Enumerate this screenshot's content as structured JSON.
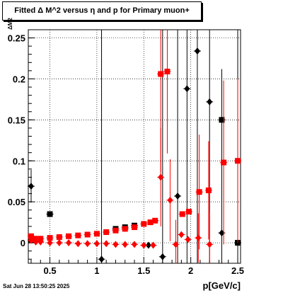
{
  "title": "Fitted Δ M^2 versus η and p for Primary muon+",
  "footer": "Sat Jun 28 13:50:25 2025",
  "chart_data": {
    "type": "scatter",
    "xlabel": "p[GeV/c]",
    "ylabel": "ΔM2",
    "xlim": [
      0.27,
      2.53
    ],
    "ylim": [
      -0.025,
      0.26
    ],
    "x_ticks": [
      {
        "value": 0.5,
        "label": "0.5"
      },
      {
        "value": 1.0,
        "label": "1"
      },
      {
        "value": 1.5,
        "label": "1.5"
      },
      {
        "value": 2.0,
        "label": "2"
      },
      {
        "value": 2.5,
        "label": "2.5"
      }
    ],
    "y_ticks": [
      {
        "value": 0,
        "label": "0"
      },
      {
        "value": 0.05,
        "label": "0.05"
      },
      {
        "value": 0.1,
        "label": "0.1"
      },
      {
        "value": 0.15,
        "label": "0.15"
      },
      {
        "value": 0.2,
        "label": "0.2"
      },
      {
        "value": 0.25,
        "label": "0.25"
      }
    ],
    "grid": true,
    "series": [
      {
        "color": "#000000",
        "marker": "square",
        "points": [
          {
            "x": 0.3,
            "y": 0.003
          },
          {
            "x": 0.5,
            "y": 0.035
          },
          {
            "x": 1.2,
            "y": 0.017
          },
          {
            "x": 1.3,
            "y": 0.019
          },
          {
            "x": 1.4,
            "y": 0.021
          },
          {
            "x": 2.33,
            "y": 0.15
          },
          {
            "x": 2.5,
            "y": 0.0
          }
        ]
      },
      {
        "color": "#000000",
        "marker": "diamond",
        "points": [
          {
            "x": 0.3,
            "y": 0.069,
            "err": 0.02
          },
          {
            "x": 1.05,
            "y": -0.02,
            "err": 0.3
          },
          {
            "x": 1.55,
            "y": -0.003
          },
          {
            "x": 1.7,
            "y": -0.017,
            "err": 0.3
          },
          {
            "x": 1.86,
            "y": 0.057,
            "err": 0.3
          },
          {
            "x": 1.96,
            "y": 0.188,
            "err": 0.3
          },
          {
            "x": 2.07,
            "y": 0.234,
            "err": 0.3
          },
          {
            "x": 2.2,
            "y": 0.172,
            "err": 0.3
          },
          {
            "x": 2.33,
            "y": 0.012,
            "err": 0.2
          },
          {
            "x": 2.5,
            "y": 0.0,
            "err": 0.3
          }
        ]
      },
      {
        "color": "#ff0000",
        "marker": "square",
        "points": [
          {
            "x": 0.3,
            "y": 0.008
          },
          {
            "x": 0.34,
            "y": 0.005
          },
          {
            "x": 0.4,
            "y": 0.005
          },
          {
            "x": 0.5,
            "y": 0.006
          },
          {
            "x": 0.6,
            "y": 0.007
          },
          {
            "x": 0.7,
            "y": 0.008
          },
          {
            "x": 0.8,
            "y": 0.009
          },
          {
            "x": 0.9,
            "y": 0.01
          },
          {
            "x": 1.0,
            "y": 0.011
          },
          {
            "x": 1.1,
            "y": 0.013
          },
          {
            "x": 1.2,
            "y": 0.015
          },
          {
            "x": 1.3,
            "y": 0.017
          },
          {
            "x": 1.4,
            "y": 0.019
          },
          {
            "x": 1.5,
            "y": 0.023
          },
          {
            "x": 1.57,
            "y": 0.025
          },
          {
            "x": 1.62,
            "y": 0.027
          },
          {
            "x": 1.68,
            "y": 0.206,
            "err": 0.12
          },
          {
            "x": 1.75,
            "y": 0.209,
            "err": 0.1
          },
          {
            "x": 1.91,
            "y": 0.035
          },
          {
            "x": 1.98,
            "y": 0.038
          },
          {
            "x": 2.09,
            "y": 0.062,
            "err": 0.07
          },
          {
            "x": 2.19,
            "y": 0.064,
            "err": 0.06
          },
          {
            "x": 2.35,
            "y": 0.098,
            "err": 0.1
          },
          {
            "x": 2.5,
            "y": 0.1,
            "err": 0.1
          }
        ]
      },
      {
        "color": "#ff0000",
        "marker": "diamond",
        "points": [
          {
            "x": 0.3,
            "y": 0.003
          },
          {
            "x": 0.35,
            "y": 0.001
          },
          {
            "x": 0.4,
            "y": 0.001
          },
          {
            "x": 0.5,
            "y": 0.0
          },
          {
            "x": 0.6,
            "y": 0.0
          },
          {
            "x": 0.7,
            "y": 0.0
          },
          {
            "x": 0.8,
            "y": -0.001
          },
          {
            "x": 0.9,
            "y": -0.001
          },
          {
            "x": 1.0,
            "y": -0.001
          },
          {
            "x": 1.1,
            "y": -0.001
          },
          {
            "x": 1.2,
            "y": -0.002
          },
          {
            "x": 1.3,
            "y": -0.002
          },
          {
            "x": 1.4,
            "y": -0.002
          },
          {
            "x": 1.5,
            "y": -0.003
          },
          {
            "x": 1.6,
            "y": -0.003
          },
          {
            "x": 1.68,
            "y": 0.08,
            "err": 0.06
          },
          {
            "x": 1.78,
            "y": 0.052,
            "err": 0.05
          },
          {
            "x": 1.84,
            "y": -0.002,
            "err": 0.03
          },
          {
            "x": 1.9,
            "y": 0.01
          },
          {
            "x": 1.97,
            "y": 0.004
          },
          {
            "x": 2.08,
            "y": 0.006,
            "err": 0.03
          },
          {
            "x": 2.2,
            "y": -0.002,
            "err": 0.04
          }
        ]
      }
    ]
  }
}
